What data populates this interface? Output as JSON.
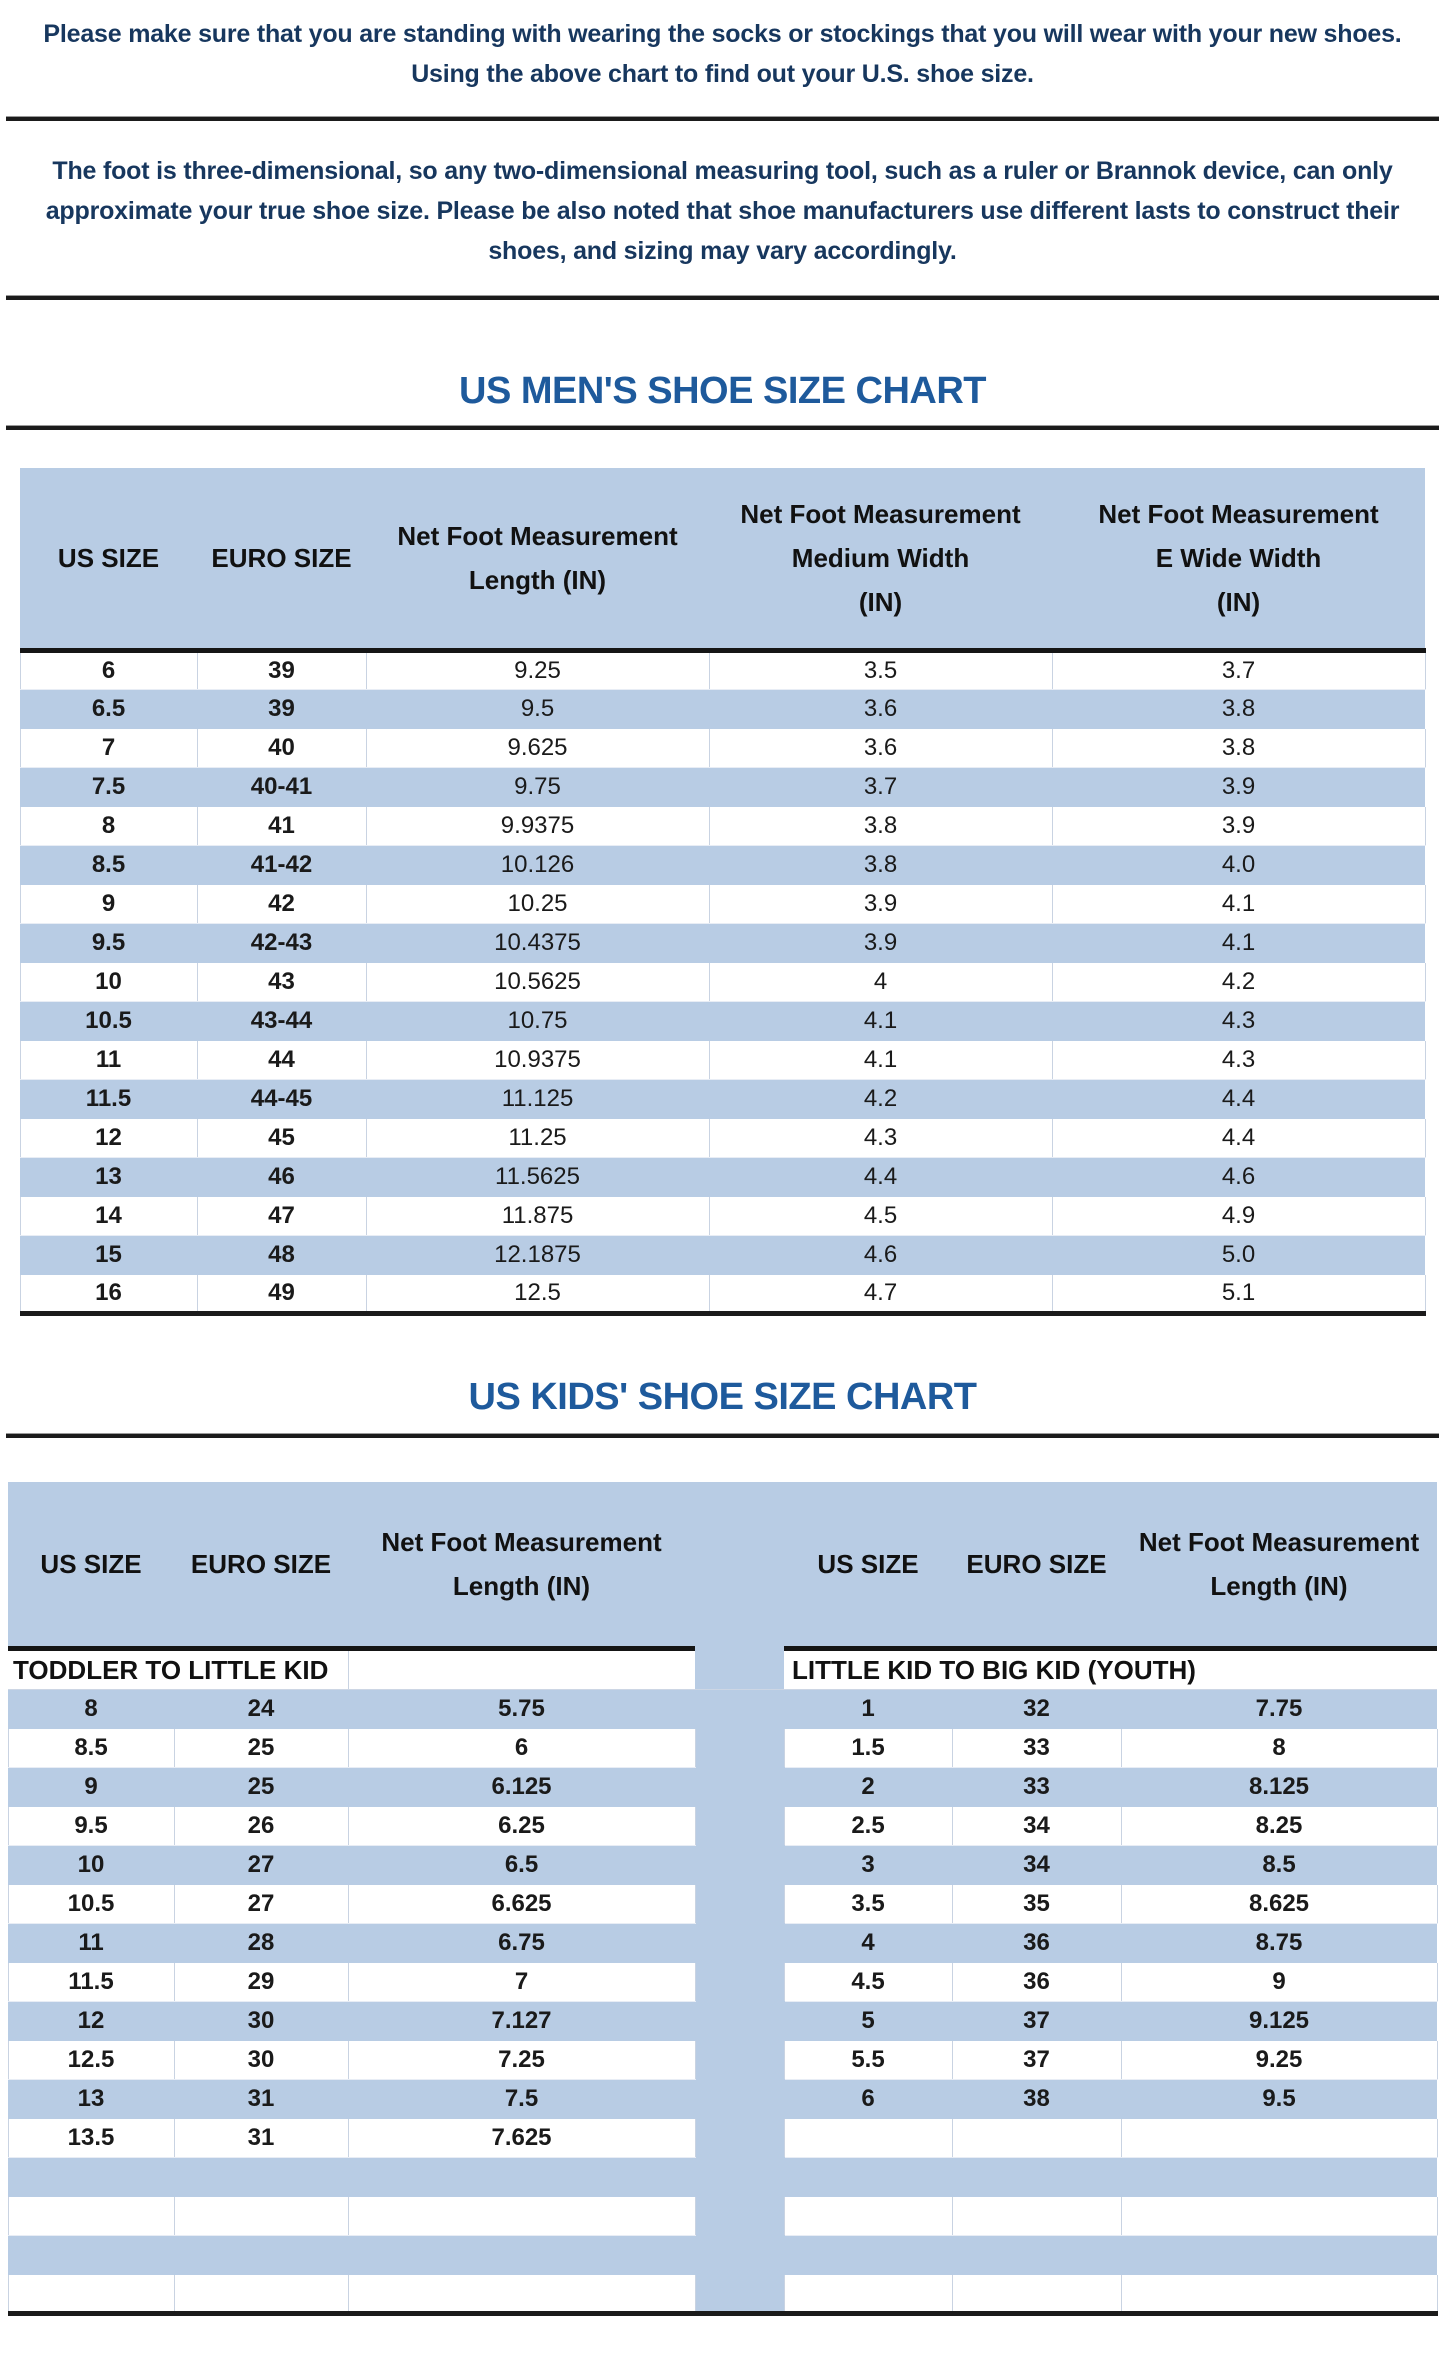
{
  "intro": {
    "text": "Please make sure that you are standing with wearing the socks or stockings that you will wear with your new shoes.\nUsing the above chart to find out your U.S. shoe size.",
    "note": "The foot is three-dimensional, so any two-dimensional measuring tool, such as a ruler or Brannok device, can only approximate your true shoe size. Please be also noted that shoe manufacturers use different lasts to construct their shoes, and sizing may vary accordingly."
  },
  "mens_chart": {
    "title": "US MEN'S SHOE SIZE CHART",
    "columns": [
      "US SIZE",
      "EURO SIZE",
      "Net Foot Measurement\nLength (IN)",
      "Net Foot Measurement\nMedium Width\n(IN)",
      "Net Foot Measurement\nE Wide Width\n(IN)"
    ],
    "rows": [
      [
        "6",
        "39",
        "9.25",
        "3.5",
        "3.7"
      ],
      [
        "6.5",
        "39",
        "9.5",
        "3.6",
        "3.8"
      ],
      [
        "7",
        "40",
        "9.625",
        "3.6",
        "3.8"
      ],
      [
        "7.5",
        "40-41",
        "9.75",
        "3.7",
        "3.9"
      ],
      [
        "8",
        "41",
        "9.9375",
        "3.8",
        "3.9"
      ],
      [
        "8.5",
        "41-42",
        "10.126",
        "3.8",
        "4.0"
      ],
      [
        "9",
        "42",
        "10.25",
        "3.9",
        "4.1"
      ],
      [
        "9.5",
        "42-43",
        "10.4375",
        "3.9",
        "4.1"
      ],
      [
        "10",
        "43",
        "10.5625",
        "4",
        "4.2"
      ],
      [
        "10.5",
        "43-44",
        "10.75",
        "4.1",
        "4.3"
      ],
      [
        "11",
        "44",
        "10.9375",
        "4.1",
        "4.3"
      ],
      [
        "11.5",
        "44-45",
        "11.125",
        "4.2",
        "4.4"
      ],
      [
        "12",
        "45",
        "11.25",
        "4.3",
        "4.4"
      ],
      [
        "13",
        "46",
        "11.5625",
        "4.4",
        "4.6"
      ],
      [
        "14",
        "47",
        "11.875",
        "4.5",
        "4.9"
      ],
      [
        "15",
        "48",
        "12.1875",
        "4.6",
        "5.0"
      ],
      [
        "16",
        "49",
        "12.5",
        "4.7",
        "5.1"
      ]
    ]
  },
  "kids_chart": {
    "title": "US KIDS' SHOE SIZE CHART",
    "columns": [
      "US SIZE",
      "EURO SIZE",
      "Net Foot Measurement\nLength (IN)"
    ],
    "left_section_label": "TODDLER TO LITTLE KID",
    "right_section_label": "LITTLE KID TO BIG KID (YOUTH)",
    "left_rows": [
      [
        "8",
        "24",
        "5.75"
      ],
      [
        "8.5",
        "25",
        "6"
      ],
      [
        "9",
        "25",
        "6.125"
      ],
      [
        "9.5",
        "26",
        "6.25"
      ],
      [
        "10",
        "27",
        "6.5"
      ],
      [
        "10.5",
        "27",
        "6.625"
      ],
      [
        "11",
        "28",
        "6.75"
      ],
      [
        "11.5",
        "29",
        "7"
      ],
      [
        "12",
        "30",
        "7.127"
      ],
      [
        "12.5",
        "30",
        "7.25"
      ],
      [
        "13",
        "31",
        "7.5"
      ],
      [
        "13.5",
        "31",
        "7.625"
      ]
    ],
    "right_rows": [
      [
        "1",
        "32",
        "7.75"
      ],
      [
        "1.5",
        "33",
        "8"
      ],
      [
        "2",
        "33",
        "8.125"
      ],
      [
        "2.5",
        "34",
        "8.25"
      ],
      [
        "3",
        "34",
        "8.5"
      ],
      [
        "3.5",
        "35",
        "8.625"
      ],
      [
        "4",
        "36",
        "8.75"
      ],
      [
        "4.5",
        "36",
        "9"
      ],
      [
        "5",
        "37",
        "9.125"
      ],
      [
        "5.5",
        "37",
        "9.25"
      ],
      [
        "6",
        "38",
        "9.5"
      ]
    ],
    "trailing_empty_rows": 4
  },
  "colors": {
    "row_blue": "#b8cce4",
    "title_blue": "#1e5a9c",
    "note_navy": "#17375e"
  }
}
